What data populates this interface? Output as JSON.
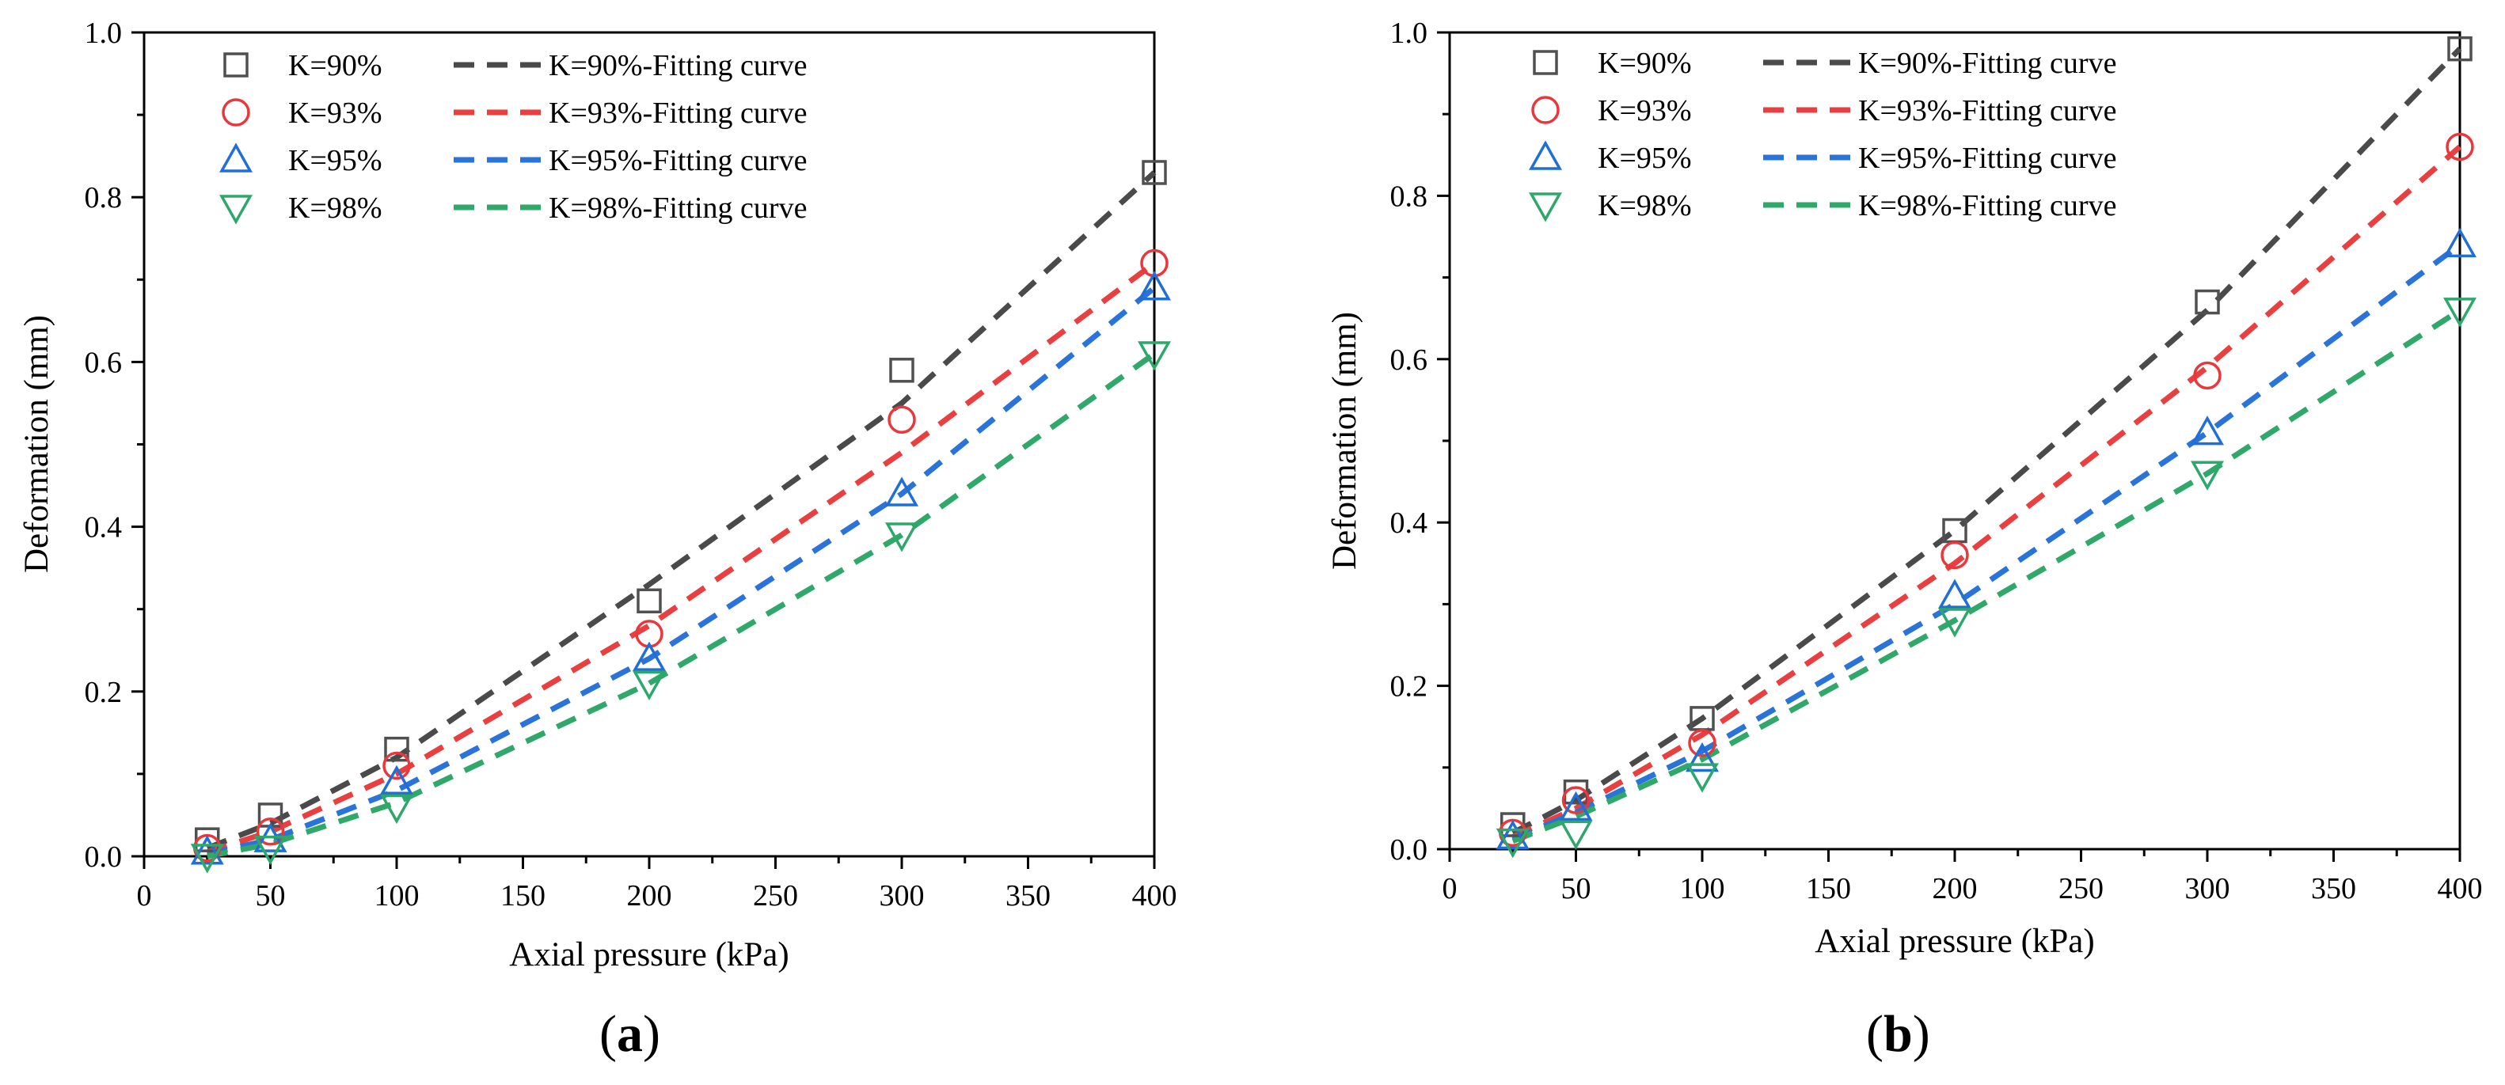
{
  "figure": {
    "panels": [
      "a",
      "b"
    ]
  },
  "chart_data": [
    {
      "type": "scatter",
      "panel_label": "a",
      "title": "",
      "xlabel": "Axial pressure (kPa)",
      "ylabel": "Deformation (mm)",
      "xlim": [
        0,
        400
      ],
      "ylim": [
        0,
        1.0
      ],
      "xticks": [
        0,
        50,
        100,
        150,
        200,
        250,
        300,
        350,
        400
      ],
      "yticks": [
        0.0,
        0.2,
        0.4,
        0.6,
        0.8,
        1.0
      ],
      "xtick_labels": [
        "0",
        "50",
        "100",
        "150",
        "200",
        "250",
        "300",
        "350",
        "400"
      ],
      "ytick_labels": [
        "0.0",
        "0.2",
        "0.4",
        "0.6",
        "0.8",
        "1.0"
      ],
      "grid": false,
      "legend_position": "top-left",
      "x": [
        25,
        50,
        100,
        200,
        300,
        400
      ],
      "series": [
        {
          "name": "K=90%",
          "marker": "square",
          "color": "#505050",
          "values": [
            0.02,
            0.05,
            0.13,
            0.31,
            0.59,
            0.83
          ],
          "fit_name": "K=90%-Fitting curve",
          "fit_color": "#4a4a4a",
          "fit_values": [
            0.01,
            0.04,
            0.12,
            0.33,
            0.55,
            0.83
          ]
        },
        {
          "name": "K=93%",
          "marker": "circle",
          "color": "#e8383d",
          "values": [
            0.01,
            0.03,
            0.11,
            0.27,
            0.53,
            0.72
          ],
          "fit_name": "K=93%-Fitting curve",
          "fit_color": "#e84040",
          "fit_values": [
            0.005,
            0.03,
            0.1,
            0.28,
            0.49,
            0.72
          ]
        },
        {
          "name": "K=95%",
          "marker": "triangle-up",
          "color": "#1f6fd6",
          "values": [
            0.005,
            0.02,
            0.09,
            0.24,
            0.44,
            0.69
          ],
          "fit_name": "K=95%-Fitting curve",
          "fit_color": "#2a73d9",
          "fit_values": [
            0.003,
            0.02,
            0.08,
            0.24,
            0.44,
            0.69
          ]
        },
        {
          "name": "K=98%",
          "marker": "triangle-down",
          "color": "#2ea86a",
          "values": [
            0.0,
            0.01,
            0.06,
            0.21,
            0.39,
            0.61
          ],
          "fit_name": "K=98%-Fitting curve",
          "fit_color": "#2fa86a",
          "fit_values": [
            0.0,
            0.015,
            0.065,
            0.21,
            0.39,
            0.61
          ]
        }
      ]
    },
    {
      "type": "scatter",
      "panel_label": "b",
      "title": "",
      "xlabel": "Axial pressure (kPa)",
      "ylabel": "Deformation (mm)",
      "xlim": [
        0,
        400
      ],
      "ylim": [
        0,
        1.0
      ],
      "xticks": [
        0,
        50,
        100,
        150,
        200,
        250,
        300,
        350,
        400
      ],
      "yticks": [
        0.0,
        0.2,
        0.4,
        0.6,
        0.8,
        1.0
      ],
      "xtick_labels": [
        "0",
        "50",
        "100",
        "150",
        "200",
        "250",
        "300",
        "350",
        "400"
      ],
      "ytick_labels": [
        "0.0",
        "0.2",
        "0.4",
        "0.6",
        "0.8",
        "1.0"
      ],
      "grid": false,
      "legend_position": "top-left",
      "x": [
        25,
        50,
        100,
        200,
        300,
        400
      ],
      "series": [
        {
          "name": "K=90%",
          "marker": "square",
          "color": "#505050",
          "values": [
            0.03,
            0.07,
            0.16,
            0.39,
            0.67,
            0.98
          ],
          "fit_name": "K=90%-Fitting curve",
          "fit_color": "#4a4a4a",
          "fit_values": [
            0.02,
            0.06,
            0.16,
            0.39,
            0.66,
            0.98
          ]
        },
        {
          "name": "K=93%",
          "marker": "circle",
          "color": "#e8383d",
          "values": [
            0.02,
            0.06,
            0.13,
            0.36,
            0.58,
            0.86
          ],
          "fit_name": "K=93%-Fitting curve",
          "fit_color": "#e84040",
          "fit_values": [
            0.015,
            0.05,
            0.14,
            0.35,
            0.59,
            0.86
          ]
        },
        {
          "name": "K=95%",
          "marker": "triangle-up",
          "color": "#1f6fd6",
          "values": [
            0.015,
            0.05,
            0.11,
            0.31,
            0.51,
            0.74
          ],
          "fit_name": "K=95%-Fitting curve",
          "fit_color": "#2a73d9",
          "fit_values": [
            0.012,
            0.045,
            0.12,
            0.3,
            0.51,
            0.74
          ]
        },
        {
          "name": "K=98%",
          "marker": "triangle-down",
          "color": "#2ea86a",
          "values": [
            0.01,
            0.02,
            0.09,
            0.28,
            0.46,
            0.66
          ],
          "fit_name": "K=98%-Fitting curve",
          "fit_color": "#2fa86a",
          "fit_values": [
            0.01,
            0.04,
            0.11,
            0.28,
            0.46,
            0.66
          ]
        }
      ]
    }
  ]
}
